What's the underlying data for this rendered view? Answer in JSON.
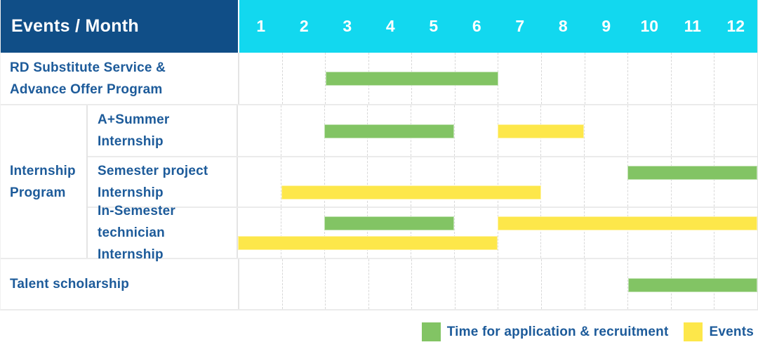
{
  "colors": {
    "header_bg": "#104e87",
    "months_bg": "#12d8ef",
    "green": "#82c464",
    "yellow": "#fde74a",
    "label_text": "#1d5b9a"
  },
  "chart_data": {
    "type": "gantt",
    "title": "Events / Month",
    "x_axis_label": "Month",
    "columns": [
      "1",
      "2",
      "3",
      "4",
      "5",
      "6",
      "7",
      "8",
      "9",
      "10",
      "11",
      "12"
    ],
    "legend_position": "bottom-right",
    "grid": "dashed-vertical-month-lines",
    "bar_types": {
      "application": {
        "label": "Time for application & recruitment",
        "color": "#82c464"
      },
      "event": {
        "label": "Events",
        "color": "#fde74a"
      }
    },
    "rows": [
      {
        "label": "RD Substitute Service & Advance Offer Program",
        "label_lines": [
          "RD Substitute Service &",
          "Advance Offer Program"
        ],
        "bars": [
          {
            "type": "application",
            "start": 3,
            "end": 6,
            "line": "center"
          }
        ]
      },
      {
        "label": "Internship Program",
        "label_lines": [
          "Internship",
          "Program"
        ],
        "children": [
          {
            "label": "A+Summer Internship",
            "label_lines": [
              "A+Summer",
              "Internship"
            ],
            "bars": [
              {
                "type": "application",
                "start": 3,
                "end": 5,
                "line": "center"
              },
              {
                "type": "event",
                "start": 7,
                "end": 8,
                "line": "center"
              }
            ]
          },
          {
            "label": "Semester project Internship",
            "label_lines": [
              "Semester project",
              "Internship"
            ],
            "bars": [
              {
                "type": "application",
                "start": 10,
                "end": 12,
                "line": "top"
              },
              {
                "type": "event",
                "start": 2,
                "end": 7,
                "line": "bottom"
              }
            ]
          },
          {
            "label": "In-Semester technician Internship",
            "label_lines": [
              "In-Semester",
              "technician Internship"
            ],
            "bars": [
              {
                "type": "application",
                "start": 3,
                "end": 5,
                "line": "top"
              },
              {
                "type": "event",
                "start": 7,
                "end": 12,
                "line": "top"
              },
              {
                "type": "event",
                "start": 1,
                "end": 6,
                "line": "bottom"
              }
            ]
          }
        ]
      },
      {
        "label": "Talent scholarship",
        "label_lines": [
          "Talent scholarship"
        ],
        "bars": [
          {
            "type": "application",
            "start": 10,
            "end": 12,
            "line": "center"
          }
        ]
      }
    ]
  }
}
